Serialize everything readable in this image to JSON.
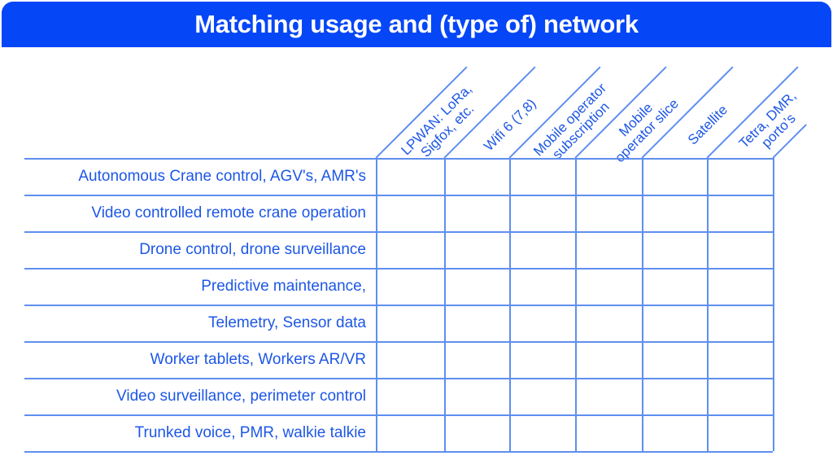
{
  "title": "Matching usage and (type of) network",
  "colors": {
    "header_bar": "#0546f7",
    "text_blue": "#1d57e5",
    "grid_line": "#5f8fef",
    "background": "#ffffff",
    "title_text": "#ffffff"
  },
  "matrix": {
    "columns": [
      {
        "label": "LPWAN: LoRa,\nSigfox, etc."
      },
      {
        "label": "Wifi 6 (7,8)"
      },
      {
        "label": "Mobile operator\nsubscription"
      },
      {
        "label": "Mobile\noperator slice"
      },
      {
        "label": "Satellite"
      },
      {
        "label": "Tetra, DMR,\nporto’s"
      }
    ],
    "rows": [
      {
        "label": "Autonomous Crane control, AGV's, AMR's"
      },
      {
        "label": "Video controlled remote crane operation"
      },
      {
        "label": "Drone control, drone surveillance"
      },
      {
        "label": "Predictive maintenance,"
      },
      {
        "label": "Telemetry, Sensor data"
      },
      {
        "label": "Worker tablets, Workers AR/VR"
      },
      {
        "label": "Video surveillance, perimeter control"
      },
      {
        "label": "Trunked voice, PMR, walkie talkie"
      }
    ],
    "cells": [
      [
        "",
        "",
        "",
        "",
        "",
        ""
      ],
      [
        "",
        "",
        "",
        "",
        "",
        ""
      ],
      [
        "",
        "",
        "",
        "",
        "",
        ""
      ],
      [
        "",
        "",
        "",
        "",
        "",
        ""
      ],
      [
        "",
        "",
        "",
        "",
        "",
        ""
      ],
      [
        "",
        "",
        "",
        "",
        "",
        ""
      ],
      [
        "",
        "",
        "",
        "",
        "",
        ""
      ],
      [
        "",
        "",
        "",
        "",
        "",
        ""
      ]
    ]
  }
}
